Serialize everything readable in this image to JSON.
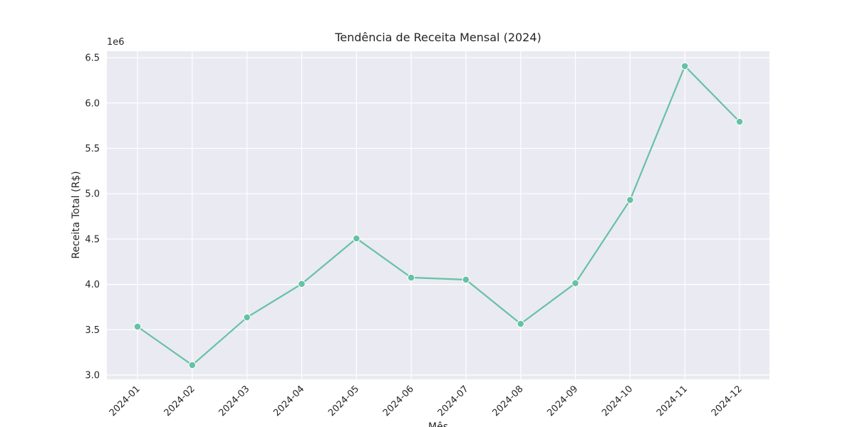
{
  "chart_data": {
    "type": "line",
    "title": "Tendência de Receita Mensal (2024)",
    "x_label": "Mês",
    "y_label": "Receita Total (R$)",
    "y_offset_label": "1e6",
    "categories": [
      "2024-01",
      "2024-02",
      "2024-03",
      "2024-04",
      "2024-05",
      "2024-06",
      "2024-07",
      "2024-08",
      "2024-09",
      "2024-10",
      "2024-11",
      "2024-12"
    ],
    "values": [
      3534000,
      3110000,
      3636000,
      4005000,
      4507000,
      4075000,
      4052000,
      3565000,
      4013000,
      4931000,
      6407000,
      5794000
    ],
    "color": "#66c2a5",
    "ylim": [
      2953000,
      6571000
    ],
    "yticks": [
      {
        "value": 3000000,
        "label": "3.0"
      },
      {
        "value": 3500000,
        "label": "3.5"
      },
      {
        "value": 4000000,
        "label": "4.0"
      },
      {
        "value": 4500000,
        "label": "4.5"
      },
      {
        "value": 5000000,
        "label": "5.0"
      },
      {
        "value": 5500000,
        "label": "5.5"
      },
      {
        "value": 6000000,
        "label": "6.0"
      },
      {
        "value": 6500000,
        "label": "6.5"
      }
    ],
    "grid": true
  }
}
